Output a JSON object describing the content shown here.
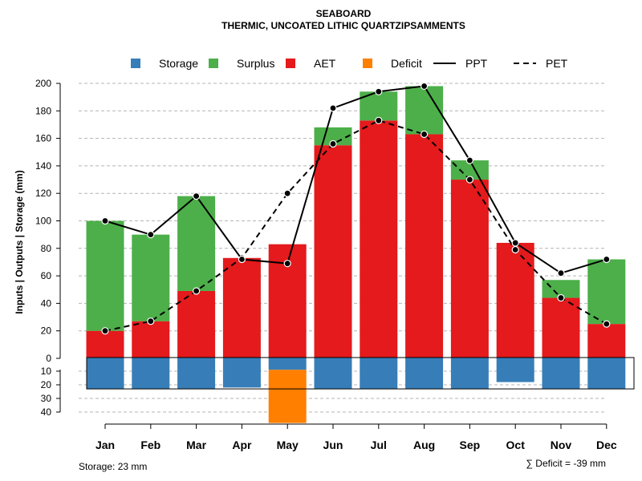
{
  "chart_data": {
    "type": "bar",
    "title": "SEABOARD",
    "subtitle": "THERMIC, UNCOATED LITHIC QUARTZIPSAMMENTS",
    "ylabel": "Inputs | Outputs | Storage    (mm)",
    "ylim_upper": [
      0,
      200
    ],
    "ylim_lower": [
      0,
      40
    ],
    "yticks_upper": [
      0,
      20,
      40,
      60,
      80,
      100,
      120,
      140,
      160,
      180,
      200
    ],
    "yticks_lower": [
      10,
      20,
      30,
      40
    ],
    "categories": [
      "Jan",
      "Feb",
      "Mar",
      "Apr",
      "May",
      "Jun",
      "Jul",
      "Aug",
      "Sep",
      "Oct",
      "Nov",
      "Dec"
    ],
    "legend": [
      {
        "name": "Storage",
        "kind": "box",
        "color": "#377eb8"
      },
      {
        "name": "Surplus",
        "kind": "box",
        "color": "#4daf4a"
      },
      {
        "name": "AET",
        "kind": "box",
        "color": "#e41a1c"
      },
      {
        "name": "Deficit",
        "kind": "box",
        "color": "#ff7f00"
      },
      {
        "name": "PPT",
        "kind": "solid",
        "color": "#000000"
      },
      {
        "name": "PET",
        "kind": "dashed",
        "color": "#000000"
      }
    ],
    "series": [
      {
        "name": "AET",
        "values": [
          20,
          27,
          49,
          73,
          83,
          155,
          173,
          163,
          130,
          84,
          44,
          25
        ]
      },
      {
        "name": "Surplus",
        "values": [
          80,
          63,
          69,
          0,
          0,
          13,
          21,
          35,
          14,
          0,
          13,
          47
        ]
      },
      {
        "name": "Storage",
        "values": [
          23,
          23,
          23,
          22,
          9,
          23,
          23,
          23,
          23,
          18,
          23,
          23
        ]
      },
      {
        "name": "Deficit",
        "values": [
          0,
          0,
          0,
          0,
          39,
          0,
          0,
          0,
          0,
          0,
          0,
          0
        ]
      },
      {
        "name": "PPT",
        "values": [
          100,
          90,
          118,
          72,
          69,
          182,
          194,
          198,
          144,
          84,
          62,
          72
        ]
      },
      {
        "name": "PET",
        "values": [
          20,
          27,
          49,
          73,
          120,
          156,
          173,
          163,
          130,
          79,
          44,
          25
        ]
      }
    ],
    "footer_left": "Storage: 23 mm",
    "footer_right": "∑ Deficit = -39 mm"
  }
}
